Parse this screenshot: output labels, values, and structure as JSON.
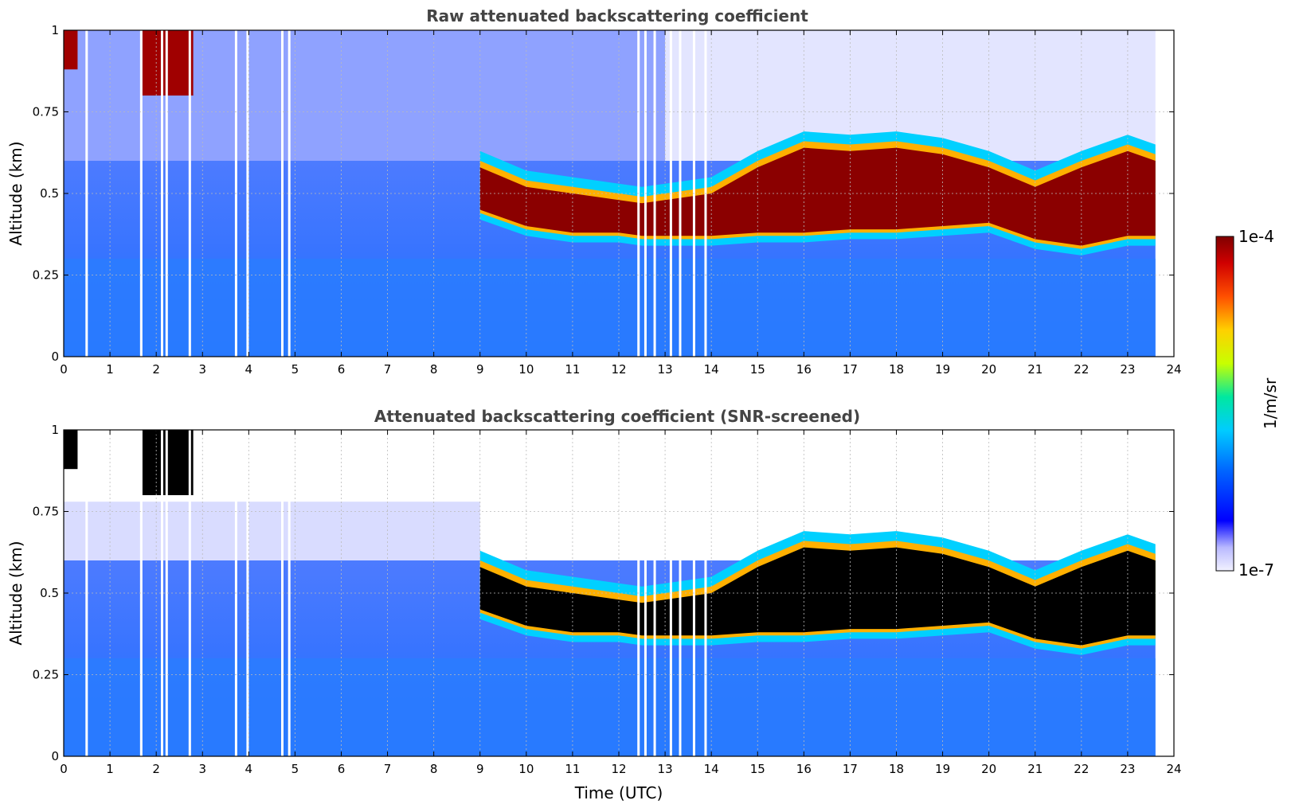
{
  "chart_data": [
    {
      "type": "heatmap",
      "title": "Raw attenuated backscattering coefficient",
      "xlabel": "",
      "ylabel": "Altitude (km)",
      "xlim": [
        0,
        24
      ],
      "ylim": [
        0,
        1
      ],
      "xticks": [
        "0",
        "1",
        "2",
        "3",
        "4",
        "5",
        "6",
        "7",
        "8",
        "9",
        "10",
        "11",
        "12",
        "13",
        "14",
        "15",
        "16",
        "17",
        "18",
        "19",
        "20",
        "21",
        "22",
        "23",
        "24"
      ],
      "yticks": [
        "0",
        "0.25",
        "0.5",
        "0.75",
        "1"
      ],
      "grid": true,
      "data_extent_hours": [
        0,
        23.6
      ],
      "cloud_layer": {
        "x": [
          9.0,
          10.0,
          11.0,
          12.0,
          12.5,
          13.0,
          14.0,
          15.0,
          16.0,
          17.0,
          18.0,
          19.0,
          20.0,
          21.0,
          22.0,
          23.0,
          23.6
        ],
        "base_km": [
          0.45,
          0.4,
          0.38,
          0.38,
          0.37,
          0.37,
          0.37,
          0.38,
          0.38,
          0.39,
          0.39,
          0.4,
          0.41,
          0.36,
          0.34,
          0.37,
          0.37
        ],
        "top_km": [
          0.58,
          0.52,
          0.5,
          0.48,
          0.47,
          0.48,
          0.5,
          0.58,
          0.64,
          0.63,
          0.64,
          0.62,
          0.58,
          0.52,
          0.58,
          0.63,
          0.6
        ]
      },
      "upper_cloud": [
        {
          "x": [
            0.0,
            0.3
          ],
          "altitude_km": [
            0.88,
            1.0
          ]
        },
        {
          "x": [
            1.7,
            2.8
          ],
          "altitude_km": [
            0.8,
            1.0
          ]
        }
      ]
    },
    {
      "type": "heatmap",
      "title": "Attenuated backscattering coefficient (SNR-screened)",
      "xlabel": "Time (UTC)",
      "ylabel": "Altitude (km)",
      "xlim": [
        0,
        24
      ],
      "ylim": [
        0,
        1
      ],
      "xticks": [
        "0",
        "1",
        "2",
        "3",
        "4",
        "5",
        "6",
        "7",
        "8",
        "9",
        "10",
        "11",
        "12",
        "13",
        "14",
        "15",
        "16",
        "17",
        "18",
        "19",
        "20",
        "21",
        "22",
        "23",
        "24"
      ],
      "yticks": [
        "0",
        "0.25",
        "0.5",
        "0.75",
        "1"
      ],
      "grid": true,
      "data_extent_hours": [
        0,
        23.6
      ],
      "screened_cloud_color": "#000000"
    }
  ],
  "colorbar": {
    "label": "1/m/sr",
    "max_label": "1e-4",
    "min_label": "1e-7",
    "scale": "log",
    "range": [
      1e-07,
      0.0001
    ],
    "colormap": [
      "#f2f2ff",
      "#0000ff",
      "#0066ff",
      "#00ccff",
      "#00e8a0",
      "#c8ff00",
      "#ffd000",
      "#ff5000",
      "#d00000",
      "#800000"
    ]
  }
}
